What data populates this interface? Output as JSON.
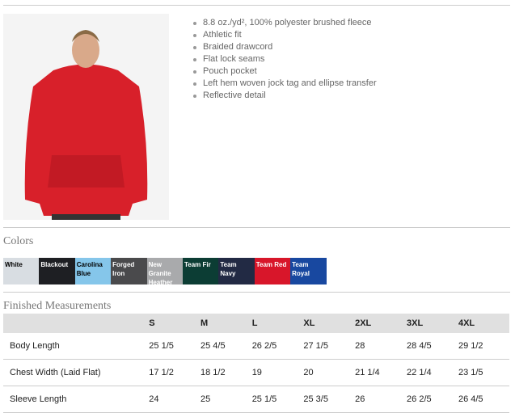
{
  "product": {
    "features": [
      "8.8 oz./yd², 100% polyester brushed fleece",
      "Athletic fit",
      "Braided drawcord",
      "Flat lock seams",
      "Pouch pocket",
      "Left hem woven jock tag and ellipse transfer",
      "Reflective detail"
    ]
  },
  "colors": {
    "title": "Colors",
    "swatches": [
      {
        "name": "White",
        "hex": "#d8dde2",
        "text": "#000"
      },
      {
        "name": "Blackout",
        "hex": "#1e1f23",
        "text": "#fff"
      },
      {
        "name": "Carolina Blue",
        "hex": "#85c6ea",
        "text": "#000"
      },
      {
        "name": "Forged Iron",
        "hex": "#4a4a4c",
        "text": "#fff"
      },
      {
        "name": "New Granite Heather",
        "hex": "#a9aaac",
        "text": "#fff"
      },
      {
        "name": "Team Fir",
        "hex": "#0c3d34",
        "text": "#fff"
      },
      {
        "name": "Team Navy",
        "hex": "#222a44",
        "text": "#fff"
      },
      {
        "name": "Team Red",
        "hex": "#d8162a",
        "text": "#fff"
      },
      {
        "name": "Team Royal",
        "hex": "#1848a0",
        "text": "#fff"
      }
    ]
  },
  "measurements": {
    "title": "Finished Measurements",
    "headers": [
      "",
      "S",
      "M",
      "L",
      "XL",
      "2XL",
      "3XL",
      "4XL"
    ],
    "rows": [
      [
        "Body Length",
        "25 1/5",
        "25 4/5",
        "26 2/5",
        "27 1/5",
        "28",
        "28 4/5",
        "29 1/2"
      ],
      [
        "Chest Width (Laid Flat)",
        "17 1/2",
        "18 1/2",
        "19",
        "20",
        "21 1/4",
        "22 1/4",
        "23 1/5"
      ],
      [
        "Sleeve Length",
        "24",
        "25",
        "25 1/5",
        "25 3/5",
        "26",
        "26 2/5",
        "26 4/5"
      ]
    ]
  }
}
